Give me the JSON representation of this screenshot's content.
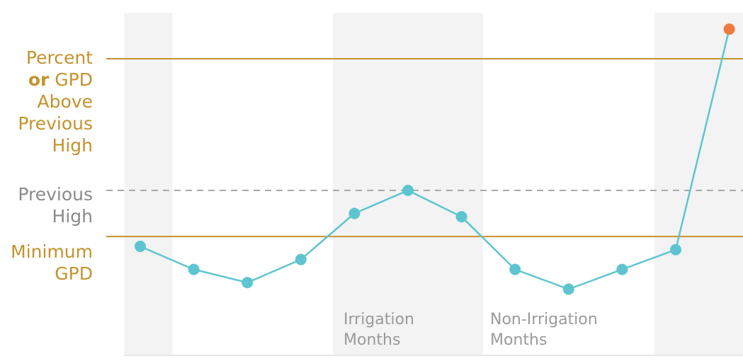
{
  "colors": {
    "gold": "#c4922e",
    "line": "#5ec5d0",
    "spike": "#ef7a3e",
    "band": "#f3f3f3",
    "dashed": "#a9a9a9",
    "label_gray": "#8a8a8a"
  },
  "labels": {
    "above": [
      "Percent",
      "GPD",
      "Above",
      "Previous",
      "High"
    ],
    "above_bold_word": "or",
    "previous_high": [
      "Previous",
      "High"
    ],
    "minimum": [
      "Minimum",
      "GPD"
    ],
    "irrigation": [
      "Irrigation",
      "Months"
    ],
    "non_irrigation": [
      "Non-Irrigation",
      "Months"
    ]
  },
  "chart_data": {
    "type": "line",
    "title": "",
    "xlabel": "",
    "ylabel": "",
    "ylim": [
      0,
      100
    ],
    "reference_lines": [
      {
        "label": "Percent or GPD Above Previous High",
        "value": 80,
        "style": "solid",
        "color": "#c4922e"
      },
      {
        "label": "Previous High",
        "value": 40,
        "style": "dashed",
        "color": "#a9a9a9"
      },
      {
        "label": "Minimum GPD",
        "value": 26,
        "style": "solid",
        "color": "#c4922e"
      }
    ],
    "bands": [
      {
        "from": 0.7,
        "to": 1.6
      },
      {
        "from": 4.6,
        "to": 7.4
      },
      {
        "from": 10.6,
        "to": 12.4,
        "end_shade": true
      }
    ],
    "band_labels": [
      {
        "text": "Irrigation Months",
        "at": 4.8
      },
      {
        "text": "Non-Irrigation Months",
        "at": 7.5
      }
    ],
    "series": [
      {
        "values": [
          23,
          16,
          12,
          19,
          33,
          40,
          32,
          16,
          10,
          16,
          22,
          89
        ],
        "highlight_last": true
      }
    ]
  }
}
